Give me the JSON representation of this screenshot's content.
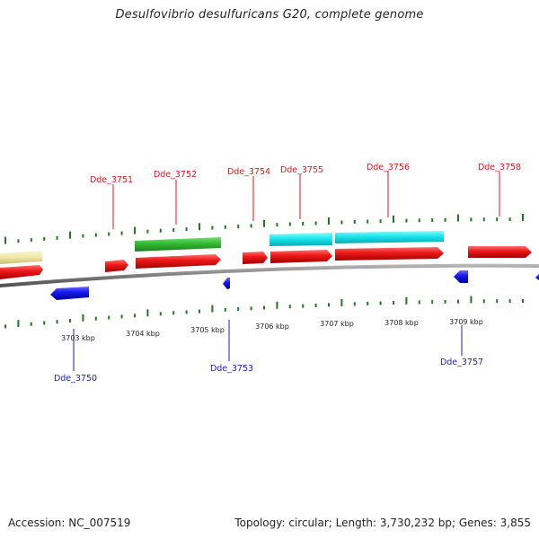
{
  "title": "Desulfovibrio desulfuricans G20, complete genome",
  "footer": {
    "accession": "Accession: NC_007519",
    "topology": "Topology: circular; Length: 3,730,232 bp; Genes: 3,855"
  },
  "colors": {
    "forward_cds": "#ef1a1a",
    "reverse_cds": "#1a1af0",
    "cyan_track": "#19e6ee",
    "green_track": "#33bb33",
    "yellow_track": "#efe7a2",
    "tick": "#1f7a1f",
    "backbone": "#7d7d7d",
    "label_top": "#e8151b",
    "label_bottom": "#1a1ad4"
  },
  "axis": {
    "unit": "kbp",
    "labels": [
      "3703 kbp",
      "3704 kbp",
      "3705 kbp",
      "3706 kbp",
      "3707 kbp",
      "3708 kbp",
      "3709 kbp"
    ]
  },
  "gene_labels_top": [
    "Dde_3751",
    "Dde_3752",
    "Dde_3754",
    "Dde_3755",
    "Dde_3756",
    "Dde_3758"
  ],
  "gene_labels_bottom": [
    "Dde_3750",
    "Dde_3753",
    "Dde_3757"
  ]
}
